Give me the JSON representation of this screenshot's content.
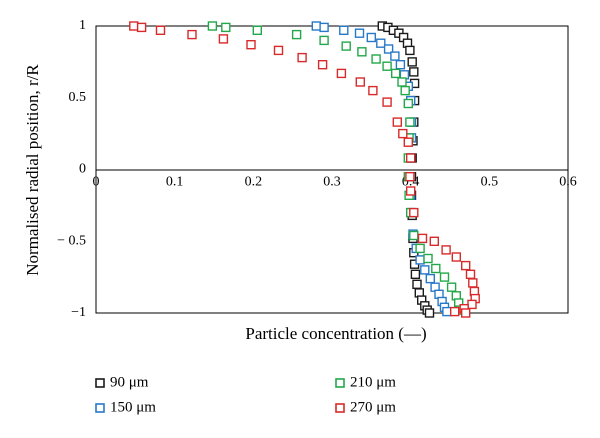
{
  "chart_data": {
    "type": "scatter",
    "title": "",
    "xlabel": "Particle concentration (—)",
    "ylabel": "Normalised radial position, r/R",
    "xlim": [
      0,
      0.6
    ],
    "ylim": [
      -1,
      1
    ],
    "xticks": [
      "0",
      "0.1",
      "0.2",
      "0.3",
      "0.4",
      "0.5",
      "0.6"
    ],
    "yticks": [
      "1",
      "0.5",
      "0",
      "− 0.5",
      "−1"
    ],
    "grid": false,
    "legend_position": "bottom",
    "series": [
      {
        "name": "90 μm",
        "color": "#1a1a1a",
        "marker": "hollow-square",
        "points": [
          [
            0.364,
            1.0
          ],
          [
            0.371,
            0.99
          ],
          [
            0.378,
            0.97
          ],
          [
            0.385,
            0.95
          ],
          [
            0.391,
            0.92
          ],
          [
            0.396,
            0.88
          ],
          [
            0.399,
            0.83
          ],
          [
            0.402,
            0.75
          ],
          [
            0.404,
            0.68
          ],
          [
            0.405,
            0.6
          ],
          [
            0.405,
            0.48
          ],
          [
            0.404,
            0.33
          ],
          [
            0.403,
            0.2
          ],
          [
            0.402,
            0.08
          ],
          [
            0.401,
            -0.05
          ],
          [
            0.401,
            -0.18
          ],
          [
            0.402,
            -0.32
          ],
          [
            0.403,
            -0.48
          ],
          [
            0.404,
            -0.58
          ],
          [
            0.405,
            -0.66
          ],
          [
            0.406,
            -0.73
          ],
          [
            0.408,
            -0.8
          ],
          [
            0.411,
            -0.86
          ],
          [
            0.414,
            -0.91
          ],
          [
            0.418,
            -0.95
          ],
          [
            0.421,
            -0.98
          ],
          [
            0.424,
            -1.0
          ]
        ]
      },
      {
        "name": "150 μm",
        "color": "#2878c8",
        "marker": "hollow-square",
        "points": [
          [
            0.28,
            1.0
          ],
          [
            0.29,
            0.99
          ],
          [
            0.315,
            0.97
          ],
          [
            0.335,
            0.95
          ],
          [
            0.35,
            0.92
          ],
          [
            0.362,
            0.88
          ],
          [
            0.372,
            0.84
          ],
          [
            0.38,
            0.79
          ],
          [
            0.387,
            0.73
          ],
          [
            0.392,
            0.66
          ],
          [
            0.397,
            0.58
          ],
          [
            0.4,
            0.48
          ],
          [
            0.401,
            0.33
          ],
          [
            0.401,
            0.22
          ],
          [
            0.4,
            0.08
          ],
          [
            0.399,
            -0.05
          ],
          [
            0.4,
            -0.18
          ],
          [
            0.401,
            -0.3
          ],
          [
            0.403,
            -0.45
          ],
          [
            0.407,
            -0.55
          ],
          [
            0.412,
            -0.63
          ],
          [
            0.418,
            -0.7
          ],
          [
            0.425,
            -0.76
          ],
          [
            0.431,
            -0.82
          ],
          [
            0.436,
            -0.87
          ],
          [
            0.44,
            -0.92
          ],
          [
            0.443,
            -0.96
          ],
          [
            0.446,
            -0.99
          ]
        ]
      },
      {
        "name": "210 μm",
        "color": "#22a84a",
        "marker": "hollow-square",
        "points": [
          [
            0.148,
            1.0
          ],
          [
            0.165,
            0.99
          ],
          [
            0.205,
            0.97
          ],
          [
            0.255,
            0.94
          ],
          [
            0.29,
            0.9
          ],
          [
            0.318,
            0.86
          ],
          [
            0.338,
            0.82
          ],
          [
            0.356,
            0.77
          ],
          [
            0.37,
            0.72
          ],
          [
            0.381,
            0.67
          ],
          [
            0.389,
            0.61
          ],
          [
            0.393,
            0.55
          ],
          [
            0.397,
            0.46
          ],
          [
            0.399,
            0.33
          ],
          [
            0.398,
            0.22
          ],
          [
            0.397,
            0.08
          ],
          [
            0.397,
            -0.05
          ],
          [
            0.398,
            -0.18
          ],
          [
            0.4,
            -0.3
          ],
          [
            0.404,
            -0.46
          ],
          [
            0.412,
            -0.55
          ],
          [
            0.422,
            -0.62
          ],
          [
            0.432,
            -0.69
          ],
          [
            0.443,
            -0.75
          ],
          [
            0.452,
            -0.82
          ],
          [
            0.458,
            -0.88
          ],
          [
            0.461,
            -0.93
          ],
          [
            0.463,
            -0.98
          ]
        ]
      },
      {
        "name": "270 μm",
        "color": "#d82a2a",
        "marker": "hollow-square",
        "points": [
          [
            0.048,
            1.0
          ],
          [
            0.058,
            0.99
          ],
          [
            0.082,
            0.97
          ],
          [
            0.122,
            0.94
          ],
          [
            0.162,
            0.91
          ],
          [
            0.197,
            0.87
          ],
          [
            0.232,
            0.83
          ],
          [
            0.262,
            0.78
          ],
          [
            0.288,
            0.73
          ],
          [
            0.312,
            0.67
          ],
          [
            0.336,
            0.61
          ],
          [
            0.352,
            0.55
          ],
          [
            0.37,
            0.47
          ],
          [
            0.383,
            0.33
          ],
          [
            0.39,
            0.25
          ],
          [
            0.397,
            0.19
          ],
          [
            0.4,
            0.08
          ],
          [
            0.399,
            -0.05
          ],
          [
            0.4,
            -0.15
          ],
          [
            0.404,
            -0.3
          ],
          [
            0.415,
            -0.48
          ],
          [
            0.43,
            -0.5
          ],
          [
            0.445,
            -0.56
          ],
          [
            0.458,
            -0.61
          ],
          [
            0.47,
            -0.67
          ],
          [
            0.476,
            -0.73
          ],
          [
            0.479,
            -0.79
          ],
          [
            0.481,
            -0.85
          ],
          [
            0.482,
            -0.9
          ],
          [
            0.478,
            -0.94
          ],
          [
            0.468,
            -0.97
          ],
          [
            0.456,
            -0.99
          ],
          [
            0.47,
            -1.0
          ]
        ]
      }
    ]
  }
}
